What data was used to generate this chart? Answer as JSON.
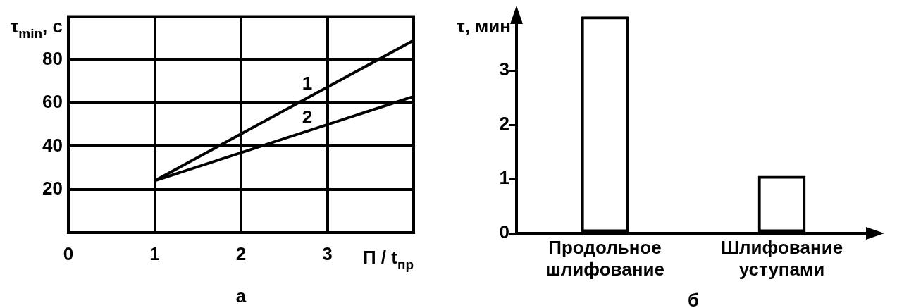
{
  "chart_data": [
    {
      "type": "line",
      "xlabel": "П / t$_{пр}$",
      "ylabel": "τ$_{min}$, с",
      "xlim": [
        0,
        4
      ],
      "xticks": [
        0,
        1,
        2,
        3
      ],
      "ylim": [
        0,
        100
      ],
      "yticks": [
        20,
        40,
        60,
        80
      ],
      "grid": true,
      "x": [
        1,
        4
      ],
      "series": [
        {
          "name": "1",
          "values": [
            24,
            89
          ],
          "color": "#000000"
        },
        {
          "name": "2",
          "values": [
            24,
            63
          ],
          "color": "#000000"
        }
      ],
      "annotations": [
        "а"
      ]
    },
    {
      "type": "bar",
      "ylabel": "τ, мин",
      "categories": [
        "Продольное шлифование",
        "Шлифование уступами"
      ],
      "values": [
        4.0,
        1.06
      ],
      "color": "#000000",
      "ylim": [
        0,
        4.1
      ],
      "yticks": [
        0,
        1,
        2,
        3
      ],
      "annotations": [
        "б"
      ]
    }
  ]
}
